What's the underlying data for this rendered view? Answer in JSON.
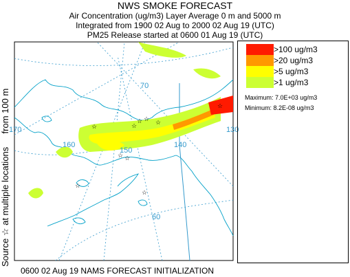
{
  "header": {
    "title": "NWS SMOKE FORECAST",
    "line1": "Air Concentration (ug/m3) Layer Average    0 m  and  5000 m",
    "line2": "Integrated from 1900 02 Aug to 2000 02 Aug 19 (UTC)",
    "line3": "PM25 Release started at 0600 01 Aug 19 (UTC)"
  },
  "side_label": {
    "prefix": "Source",
    "star": "☆",
    "suffix": "at multiple locations",
    "from": "from   100 m"
  },
  "legend": {
    "items": [
      {
        "label": ">100 ug/m3",
        "color": "#ff1a00"
      },
      {
        "label": ">20 ug/m3",
        "color": "#ff9900"
      },
      {
        "label": ">5 ug/m3",
        "color": "#ffff00"
      },
      {
        "label": ">1 ug/m3",
        "color": "#ccff33"
      }
    ],
    "maximum": "Maximum: 7.0E+03 ug/m3",
    "minimum": "Minimum: 8.2E-08 ug/m3"
  },
  "map": {
    "grid_labels": [
      "70",
      "170",
      "160",
      "150",
      "140",
      "130",
      "60"
    ],
    "coast_color": "#00a0c8",
    "grid_color": "#3399cc",
    "border_color": "#3399cc"
  },
  "footer": "0600 02 Aug 19 NAMS FORECAST INITIALIZATION"
}
